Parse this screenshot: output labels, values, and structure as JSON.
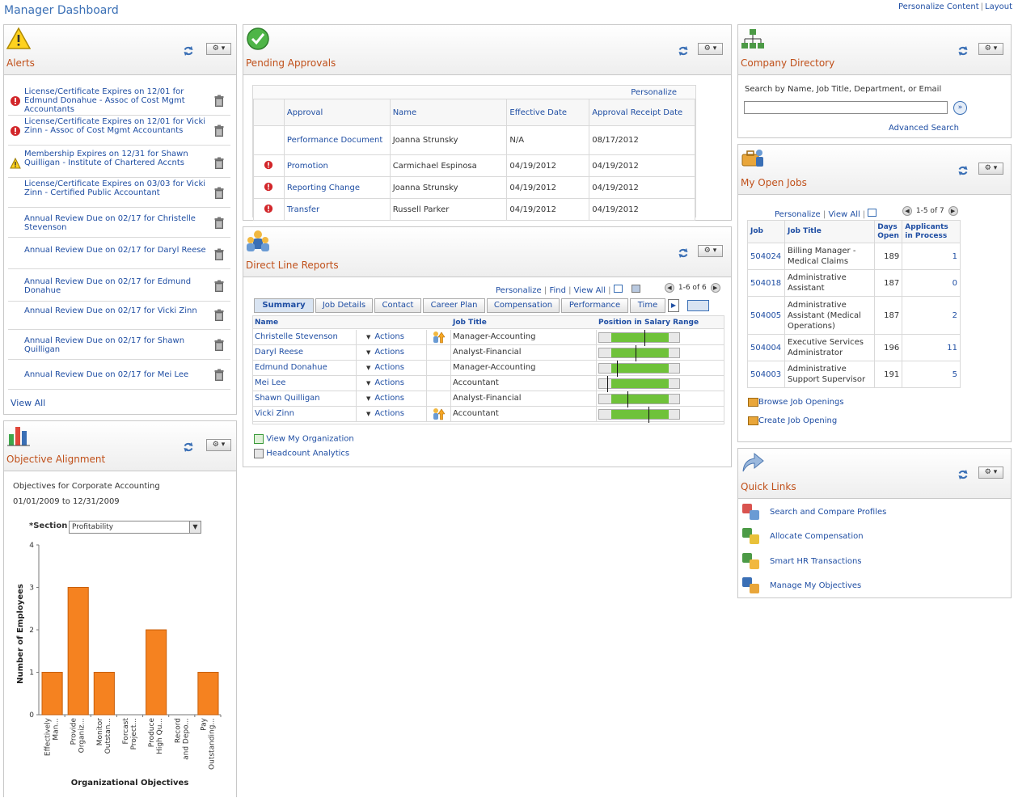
{
  "page": {
    "title": "Manager Dashboard",
    "top_links": [
      "Personalize Content",
      "Layout"
    ]
  },
  "alerts": {
    "title": "Alerts",
    "items": [
      {
        "text": "License/Certificate Expires on 12/01 for Edmund Donahue - Assoc of Cost Mgmt Accountants",
        "icon": "error-icon"
      },
      {
        "text": "License/Certificate Expires on 12/01 for Vicki Zinn - Assoc of Cost Mgmt Accountants",
        "icon": "error-icon"
      },
      {
        "text": "Membership Expires on 12/31 for Shawn Quilligan - Institute of Chartered Accnts",
        "icon": "warning-icon"
      },
      {
        "text": "License/Certificate Expires on 03/03 for Vicki Zinn - Certified Public Accountant",
        "icon": ""
      },
      {
        "text": "Annual Review Due on 02/17 for Christelle Stevenson",
        "icon": ""
      },
      {
        "text": "Annual Review Due on 02/17 for Daryl Reese",
        "icon": ""
      },
      {
        "text": "Annual Review Due on 02/17 for Edmund Donahue",
        "icon": ""
      },
      {
        "text": "Annual Review Due on 02/17 for Vicki Zinn",
        "icon": ""
      },
      {
        "text": "Annual Review Due on 02/17 for Shawn Quilligan",
        "icon": ""
      },
      {
        "text": "Annual Review Due on 02/17 for Mei Lee",
        "icon": ""
      }
    ],
    "view_all": "View All"
  },
  "objective": {
    "title": "Objective Alignment",
    "line1": "Objectives for Corporate Accounting",
    "line2": "01/01/2009 to 12/31/2009",
    "section_label": "*Section",
    "section_value": "Profitability"
  },
  "chart_data": {
    "type": "bar",
    "categories": [
      "Effectively Man...",
      "Provide Organiz...",
      "Monitor Outstan...",
      "Forcast Project...",
      "Produce High Qu...",
      "Record and Depo...",
      "Pay Outstanding..."
    ],
    "values": [
      1,
      3,
      1,
      0,
      2,
      0,
      1
    ],
    "xlabel": "Organizational Objectives",
    "ylabel": "Number of Employees",
    "ylim": [
      0,
      4
    ],
    "yticks": [
      "0",
      "1",
      "2",
      "3",
      "4"
    ],
    "bar_color": "#f58220"
  },
  "approvals": {
    "title": "Pending Approvals",
    "personalize": "Personalize",
    "headers": [
      "Approval",
      "Name",
      "Effective Date",
      "Approval Receipt Date"
    ],
    "rows": [
      {
        "flag": false,
        "approval": "Performance Document",
        "name": "Joanna Strunsky",
        "eff": "N/A",
        "receipt": "08/17/2012"
      },
      {
        "flag": true,
        "approval": "Promotion",
        "name": "Carmichael Espinosa",
        "eff": "04/19/2012",
        "receipt": "04/19/2012"
      },
      {
        "flag": true,
        "approval": "Reporting Change",
        "name": "Joanna Strunsky",
        "eff": "04/19/2012",
        "receipt": "04/19/2012"
      },
      {
        "flag": true,
        "approval": "Transfer",
        "name": "Russell Parker",
        "eff": "04/19/2012",
        "receipt": "04/19/2012"
      }
    ]
  },
  "reports": {
    "title": "Direct Line Reports",
    "nav": {
      "personalize": "Personalize",
      "find": "Find",
      "view_all": "View All",
      "count": "1-6 of 6"
    },
    "tabs": [
      "Summary",
      "Job Details",
      "Contact",
      "Career Plan",
      "Compensation",
      "Performance",
      "Time"
    ],
    "headers": [
      "Name",
      "Job Title",
      "Position in Salary Range"
    ],
    "actions_label": "Actions",
    "rows": [
      {
        "name": "Christelle Stevenson",
        "job": "Manager-Accounting",
        "icon": true,
        "fill": [
          0.15,
          0.85
        ],
        "pos": 0.55
      },
      {
        "name": "Daryl Reese",
        "job": "Analyst-Financial",
        "icon": false,
        "fill": [
          0.15,
          0.85
        ],
        "pos": 0.45
      },
      {
        "name": "Edmund Donahue",
        "job": "Manager-Accounting",
        "icon": false,
        "fill": [
          0.15,
          0.85
        ],
        "pos": 0.22
      },
      {
        "name": "Mei Lee",
        "job": "Accountant",
        "icon": false,
        "fill": [
          0.15,
          0.85
        ],
        "pos": 0.1
      },
      {
        "name": "Shawn Quilligan",
        "job": "Analyst-Financial",
        "icon": false,
        "fill": [
          0.15,
          0.85
        ],
        "pos": 0.35
      },
      {
        "name": "Vicki Zinn",
        "job": "Accountant",
        "icon": true,
        "fill": [
          0.15,
          0.85
        ],
        "pos": 0.6
      }
    ],
    "links": [
      "View My Organization",
      "Headcount Analytics"
    ]
  },
  "directory": {
    "title": "Company Directory",
    "label": "Search by Name, Job Title, Department, or Email",
    "search_value": "",
    "advanced": "Advanced Search"
  },
  "open_jobs": {
    "title": "My Open Jobs",
    "nav": {
      "personalize": "Personalize",
      "view_all": "View All",
      "count": "1-5 of 7"
    },
    "headers": [
      "Job",
      "Job Title",
      "Days Open",
      "Applicants in Process"
    ],
    "rows": [
      {
        "job": "504024",
        "title": "Billing Manager - Medical Claims",
        "days": "189",
        "apps": "1"
      },
      {
        "job": "504018",
        "title": "Administrative Assistant",
        "days": "187",
        "apps": "0"
      },
      {
        "job": "504005",
        "title": "Administrative Assistant (Medical Operations)",
        "days": "187",
        "apps": "2"
      },
      {
        "job": "504004",
        "title": "Executive Services Administrator",
        "days": "196",
        "apps": "11"
      },
      {
        "job": "504003",
        "title": "Administrative Support Supervisor",
        "days": "191",
        "apps": "5"
      }
    ],
    "links": [
      "Browse Job Openings",
      "Create Job Opening"
    ]
  },
  "quick_links": {
    "title": "Quick Links",
    "items": [
      {
        "label": "Search and Compare Profiles",
        "icon": "profiles-icon"
      },
      {
        "label": "Allocate Compensation",
        "icon": "compensation-icon"
      },
      {
        "label": "Smart HR Transactions",
        "icon": "smart-hr-icon"
      },
      {
        "label": "Manage My Objectives",
        "icon": "objectives-icon"
      }
    ]
  }
}
